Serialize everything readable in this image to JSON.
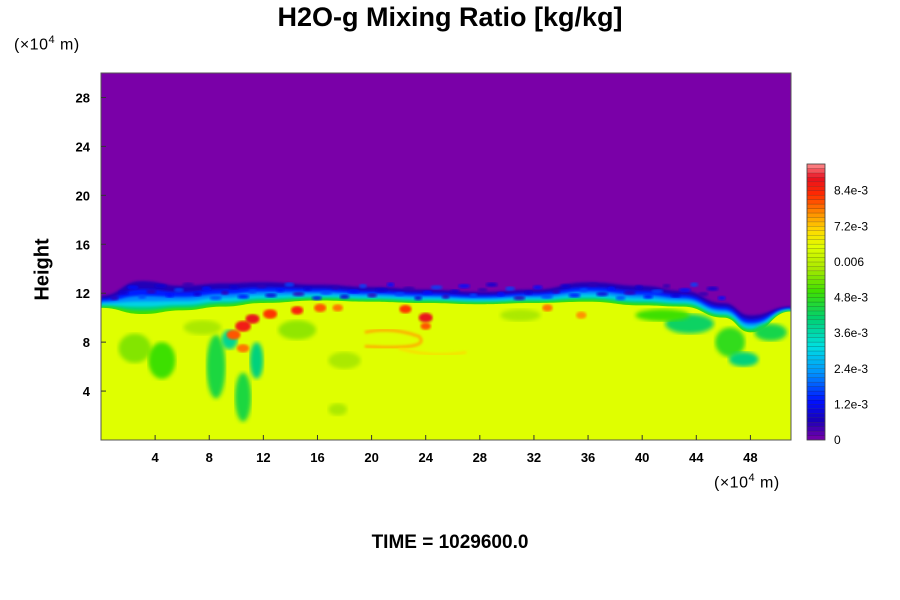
{
  "chart_data": {
    "type": "heatmap",
    "title": "H2O-g Mixing Ratio [kg/kg]",
    "ylabel": "Height",
    "y_unit": "(×10",
    "y_unit_exp": "4",
    "y_unit_tail": " m)",
    "x_unit": "(×10",
    "x_unit_exp": "4",
    "x_unit_tail": " m)",
    "footer": "TIME = 1029600.0",
    "xlim": [
      0,
      51
    ],
    "ylim": [
      0,
      30
    ],
    "x_ticks": [
      "4",
      "8",
      "12",
      "16",
      "20",
      "24",
      "28",
      "32",
      "36",
      "40",
      "44",
      "48"
    ],
    "x_tick_values": [
      4,
      8,
      12,
      16,
      20,
      24,
      28,
      32,
      36,
      40,
      44,
      48
    ],
    "y_ticks": [
      "4",
      "8",
      "12",
      "16",
      "20",
      "24",
      "28"
    ],
    "y_tick_values": [
      4,
      8,
      12,
      16,
      20,
      24,
      28
    ],
    "colorbar": {
      "min": 0,
      "max": 0.0093,
      "labels": [
        "0",
        "1.2e-3",
        "2.4e-3",
        "3.6e-3",
        "4.8e-3",
        "0.006",
        "7.2e-3",
        "8.4e-3"
      ],
      "label_values": [
        0,
        0.0012,
        0.0024,
        0.0036,
        0.0048,
        0.006,
        0.0072,
        0.0084
      ]
    },
    "field": {
      "interior_value": 0.0065,
      "top_value": 0,
      "top_boundary": [
        {
          "x": 0,
          "y": 10.8
        },
        {
          "x": 3,
          "y": 10.3
        },
        {
          "x": 6,
          "y": 10.6
        },
        {
          "x": 9,
          "y": 10.9
        },
        {
          "x": 12,
          "y": 11.2
        },
        {
          "x": 16,
          "y": 11.4
        },
        {
          "x": 20,
          "y": 11.3
        },
        {
          "x": 24,
          "y": 11.2
        },
        {
          "x": 28,
          "y": 11.1
        },
        {
          "x": 32,
          "y": 11.2
        },
        {
          "x": 36,
          "y": 11.3
        },
        {
          "x": 40,
          "y": 11.0
        },
        {
          "x": 43,
          "y": 10.9
        },
        {
          "x": 46,
          "y": 10.0
        },
        {
          "x": 48,
          "y": 8.8
        },
        {
          "x": 51,
          "y": 10.5
        }
      ],
      "cloud_top": [
        {
          "x": 0,
          "y": 11.8
        },
        {
          "x": 3,
          "y": 13.0
        },
        {
          "x": 6,
          "y": 12.6
        },
        {
          "x": 9,
          "y": 12.8
        },
        {
          "x": 12,
          "y": 12.9
        },
        {
          "x": 16,
          "y": 12.7
        },
        {
          "x": 20,
          "y": 12.5
        },
        {
          "x": 24,
          "y": 12.3
        },
        {
          "x": 28,
          "y": 12.1
        },
        {
          "x": 32,
          "y": 12.3
        },
        {
          "x": 36,
          "y": 12.9
        },
        {
          "x": 40,
          "y": 12.6
        },
        {
          "x": 43,
          "y": 12.2
        },
        {
          "x": 46,
          "y": 11.2
        },
        {
          "x": 48,
          "y": 10.2
        },
        {
          "x": 51,
          "y": 10.9
        }
      ]
    }
  }
}
